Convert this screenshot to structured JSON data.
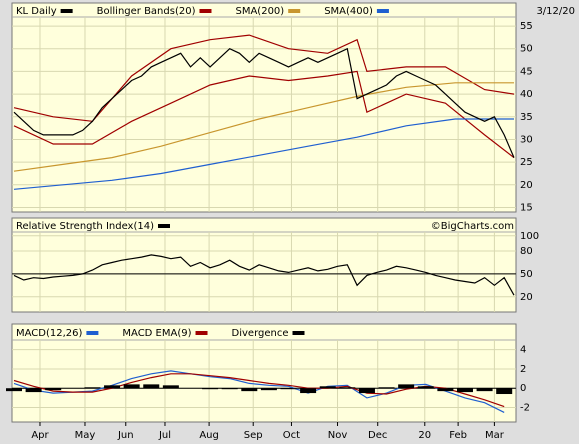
{
  "date": "3/12/20",
  "watermark": "©BigCharts.com",
  "chart_data": [
    {
      "type": "line",
      "title": "KL Daily",
      "title_color": "#000000",
      "xlim": [
        0,
        51
      ],
      "ylim": [
        14,
        57
      ],
      "yticks": [
        15,
        20,
        25,
        30,
        35,
        40,
        45,
        50,
        55
      ],
      "grid": true,
      "series": [
        {
          "name": "Bollinger Bands(20)",
          "color": "#a00000",
          "x": [
            0,
            4,
            8,
            12,
            16,
            20,
            24,
            28,
            32,
            35,
            36,
            40,
            44,
            48,
            51
          ],
          "upper": [
            37,
            35,
            34,
            44,
            50,
            52,
            53,
            50,
            49,
            52,
            45,
            46,
            46,
            41,
            40
          ],
          "lower": [
            33,
            29,
            29,
            34,
            38,
            42,
            44,
            43,
            44,
            45,
            36,
            40,
            38,
            31,
            26
          ]
        },
        {
          "name": "SMA(200)",
          "color": "#c8962e",
          "x": [
            0,
            5,
            10,
            15,
            20,
            25,
            30,
            35,
            40,
            45,
            51
          ],
          "values": [
            23,
            24.5,
            26,
            28.5,
            31.5,
            34.5,
            37,
            39.5,
            41.5,
            42.5,
            42.5
          ]
        },
        {
          "name": "SMA(400)",
          "color": "#1f5fd0",
          "x": [
            0,
            5,
            10,
            15,
            20,
            25,
            30,
            35,
            40,
            45,
            51
          ],
          "values": [
            19,
            20,
            21,
            22.5,
            24.5,
            26.5,
            28.5,
            30.5,
            33,
            34.5,
            34.5
          ]
        },
        {
          "color": "#000000",
          "values": [
            36,
            34,
            32,
            31,
            31,
            31,
            31,
            32,
            34,
            37,
            39,
            41,
            43,
            44,
            46,
            47,
            48,
            49,
            46,
            48,
            46,
            48,
            50,
            49,
            47,
            49,
            48,
            47,
            46,
            47,
            48,
            47,
            48,
            49,
            50,
            39,
            40,
            41,
            42,
            44,
            45,
            44,
            43,
            42,
            40,
            38,
            36,
            35,
            34,
            35,
            31,
            26
          ]
        }
      ]
    },
    {
      "type": "line",
      "title": "Relative Strength Index(14)",
      "title_color": "#000000",
      "xlim": [
        0,
        51
      ],
      "ylim": [
        0,
        105
      ],
      "yticks": [
        20,
        50,
        80,
        100
      ],
      "hline": 50,
      "grid": true,
      "series": [
        {
          "color": "#000000",
          "values": [
            48,
            42,
            45,
            44,
            46,
            47,
            48,
            50,
            55,
            62,
            65,
            68,
            70,
            72,
            75,
            73,
            70,
            72,
            60,
            65,
            58,
            62,
            68,
            60,
            55,
            62,
            58,
            54,
            52,
            55,
            58,
            54,
            56,
            60,
            62,
            35,
            48,
            52,
            55,
            60,
            58,
            55,
            52,
            48,
            45,
            42,
            40,
            38,
            45,
            35,
            45,
            22
          ]
        }
      ]
    },
    {
      "type": "line",
      "xlim": [
        0,
        51
      ],
      "ylim": [
        -3.5,
        5
      ],
      "yticks": [
        -2,
        0,
        2,
        4
      ],
      "hline": 0,
      "grid": true,
      "xticks": [
        {
          "value": 2.65,
          "label": "Apr"
        },
        {
          "value": 7.24,
          "label": "May"
        },
        {
          "value": 11.4,
          "label": "Jun"
        },
        {
          "value": 15.4,
          "label": "Jul"
        },
        {
          "value": 19.9,
          "label": "Aug"
        },
        {
          "value": 24.4,
          "label": "Sep"
        },
        {
          "value": 28.3,
          "label": "Oct"
        },
        {
          "value": 33,
          "label": "Nov"
        },
        {
          "value": 37.1,
          "label": "Dec"
        },
        {
          "value": 41.9,
          "label": "20"
        },
        {
          "value": 45.3,
          "label": "Feb"
        },
        {
          "value": 49,
          "label": "Mar"
        }
      ],
      "series": [
        {
          "name": "MACD(12,26)",
          "color": "#1f5fd0",
          "x": [
            0,
            2,
            4,
            6,
            8,
            10,
            12,
            14,
            16,
            18,
            20,
            22,
            24,
            26,
            28,
            30,
            32,
            34,
            36,
            38,
            40,
            42,
            44,
            46,
            48,
            50
          ],
          "values": [
            0.5,
            -0.2,
            -0.5,
            -0.4,
            -0.3,
            0.3,
            1.0,
            1.5,
            1.8,
            1.5,
            1.2,
            1.0,
            0.5,
            0.3,
            0.2,
            -0.5,
            0.2,
            0.3,
            -1.0,
            -0.5,
            0.3,
            0.4,
            -0.3,
            -1.0,
            -1.5,
            -2.5
          ]
        },
        {
          "name": "MACD EMA(9)",
          "color": "#a00000",
          "x": [
            0,
            2,
            4,
            6,
            8,
            10,
            12,
            14,
            16,
            18,
            20,
            22,
            24,
            26,
            28,
            30,
            32,
            34,
            36,
            38,
            40,
            42,
            44,
            46,
            48,
            50
          ],
          "values": [
            0.8,
            0.2,
            -0.3,
            -0.4,
            -0.4,
            0,
            0.6,
            1.1,
            1.5,
            1.5,
            1.3,
            1.1,
            0.8,
            0.5,
            0.3,
            0,
            0,
            0.2,
            -0.5,
            -0.6,
            -0.1,
            0.2,
            0,
            -0.6,
            -1.2,
            -1.9
          ]
        },
        {
          "name": "Divergence",
          "color": "#000000",
          "type": "bar",
          "x": [
            0,
            2,
            4,
            6,
            8,
            10,
            12,
            14,
            16,
            18,
            20,
            22,
            24,
            26,
            28,
            30,
            32,
            34,
            36,
            38,
            40,
            42,
            44,
            46,
            48,
            50
          ],
          "values": [
            -0.3,
            -0.4,
            -0.2,
            0,
            0.1,
            0.3,
            0.4,
            0.4,
            0.3,
            0,
            -0.1,
            -0.1,
            -0.3,
            -0.2,
            -0.1,
            -0.5,
            0.2,
            0.1,
            -0.5,
            0.1,
            0.4,
            0.2,
            -0.3,
            -0.4,
            -0.3,
            -0.6
          ]
        }
      ]
    }
  ]
}
